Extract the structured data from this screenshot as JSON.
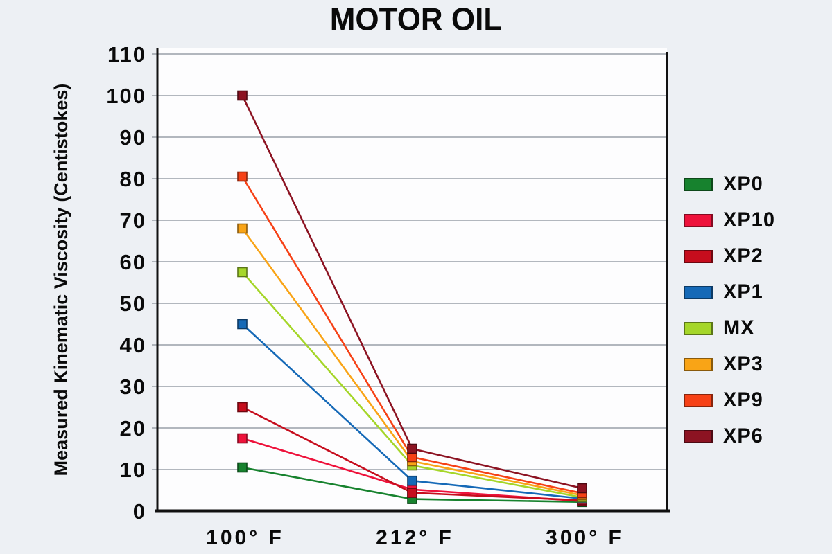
{
  "title": "MOTOR OIL",
  "colors": {
    "background": "#edf0f4",
    "plot_background": "#fdfdfe",
    "gridline": "#9aa0a8",
    "axis": "#111111",
    "text": "#0a0a0a"
  },
  "chart_data": {
    "type": "line",
    "title": "MOTOR OIL",
    "categories": [
      "100° F",
      "212° F",
      "300° F"
    ],
    "xlabel": "",
    "ylabel": "Measured Kinematic Viscosity (Centistokes)",
    "ylim": [
      0,
      110
    ],
    "ytick_step": 10,
    "yticks": [
      0,
      10,
      20,
      30,
      40,
      50,
      60,
      70,
      80,
      90,
      100,
      110
    ],
    "grid": "horizontal",
    "legend_position": "right",
    "marker": "square",
    "series": [
      {
        "name": "XP0",
        "color": "#17822e",
        "values": [
          10.5,
          2.9,
          2.2
        ]
      },
      {
        "name": "XP10",
        "color": "#ee123b",
        "values": [
          17.5,
          5.2,
          2.4
        ]
      },
      {
        "name": "XP2",
        "color": "#c60d1d",
        "values": [
          25.0,
          4.4,
          2.6
        ]
      },
      {
        "name": "XP1",
        "color": "#1569b7",
        "values": [
          45.0,
          7.3,
          3.0
        ]
      },
      {
        "name": "MX",
        "color": "#a5d629",
        "values": [
          57.5,
          11.0,
          3.3
        ]
      },
      {
        "name": "XP3",
        "color": "#f9a416",
        "values": [
          68.0,
          12.0,
          3.8
        ]
      },
      {
        "name": "XP9",
        "color": "#f64116",
        "values": [
          80.5,
          13.0,
          4.3
        ]
      },
      {
        "name": "XP6",
        "color": "#8c1322",
        "values": [
          100.0,
          15.0,
          5.5
        ]
      }
    ]
  }
}
